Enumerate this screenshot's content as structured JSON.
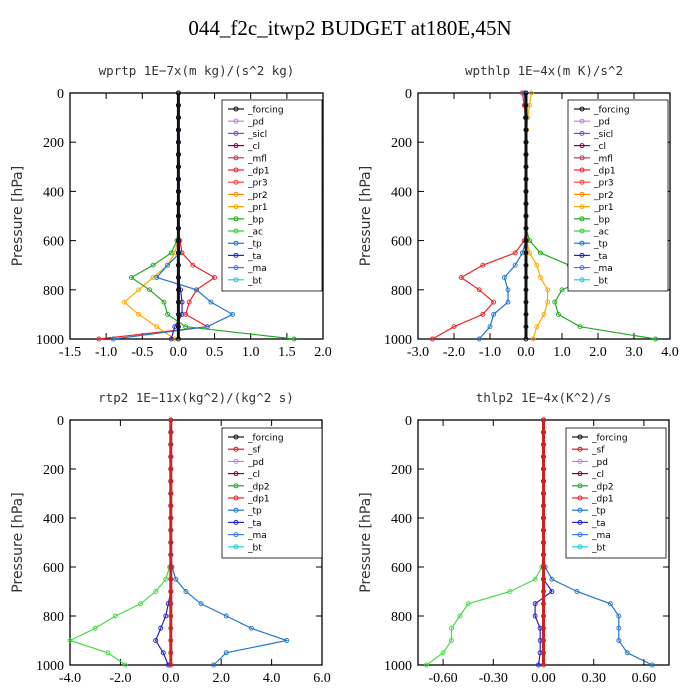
{
  "title": "044_f2c_itwp2  BUDGET at180E,45N",
  "chart_data": [
    {
      "type": "line",
      "title": "wprtp   1E−7x(m kg)/(s^2 kg)",
      "ylabel": "Pressure [hPa]",
      "xlim": [
        -1.5,
        2.0
      ],
      "ylim": [
        1000,
        0
      ],
      "xticks": [
        "-1.5",
        "-1.0",
        "-0.5",
        "0.0",
        "0.5",
        "1.0",
        "1.5",
        "2.0"
      ],
      "yticks": [
        "0",
        "200",
        "400",
        "600",
        "800",
        "1000"
      ],
      "y": [
        0,
        50,
        100,
        150,
        200,
        250,
        300,
        350,
        400,
        450,
        500,
        550,
        600,
        650,
        700,
        750,
        800,
        850,
        900,
        950,
        1000
      ],
      "legend": [
        "_forcing",
        "_pd",
        "_sicl",
        "_cl",
        "_mfl",
        "_dp1",
        "_pr3",
        "_pr2",
        "_pr1",
        "_bp",
        "_ac",
        "_tp",
        "_ta",
        "_ma",
        "_bt"
      ],
      "series": [
        {
          "name": "_dp1",
          "color": "#ee2222",
          "values": [
            0,
            0,
            0,
            0,
            0,
            0,
            0,
            0,
            0,
            0,
            0,
            0,
            0.02,
            0.05,
            0.2,
            0.5,
            0.25,
            0.15,
            0.1,
            0.4,
            -1.1
          ]
        },
        {
          "name": "_pr1",
          "color": "#ffaa00",
          "values": [
            0,
            0,
            0,
            0,
            0,
            0,
            0,
            0,
            0,
            0,
            0,
            0,
            -0.01,
            -0.05,
            -0.15,
            -0.35,
            -0.55,
            -0.75,
            -0.55,
            -0.3,
            -0.05
          ]
        },
        {
          "name": "_bp",
          "color": "#22aa22",
          "values": [
            0,
            0,
            0,
            0,
            0,
            0,
            0,
            0,
            0,
            0,
            0,
            0,
            -0.02,
            -0.1,
            -0.35,
            -0.65,
            -0.4,
            -0.2,
            -0.15,
            0.1,
            1.6
          ]
        },
        {
          "name": "_tp",
          "color": "#2277cc",
          "values": [
            0,
            0,
            0,
            0,
            0,
            0,
            0,
            0,
            0,
            0,
            0,
            0,
            0,
            0.02,
            -0.15,
            -0.3,
            0.25,
            0.45,
            0.75,
            0.4,
            -0.9
          ]
        },
        {
          "name": "_ta",
          "color": "#2222cc",
          "values": [
            0,
            0,
            0,
            0,
            0,
            0,
            0,
            0,
            0,
            0,
            0,
            0,
            0,
            0,
            0,
            0,
            0.03,
            0.05,
            0.05,
            -0.05,
            -0.1
          ]
        },
        {
          "name": "_forcing",
          "color": "#111111",
          "values": [
            0,
            0,
            0,
            0,
            0,
            0,
            0,
            0,
            0,
            0,
            0,
            0,
            0,
            0,
            0,
            0,
            0,
            0,
            0,
            0,
            0
          ]
        }
      ]
    },
    {
      "type": "line",
      "title": "wpthlp   1E−4x(m K)/s^2",
      "ylabel": "Pressure [hPa]",
      "xlim": [
        -3.0,
        4.0
      ],
      "ylim": [
        1000,
        0
      ],
      "xticks": [
        "-3.0",
        "-2.0",
        "-1.0",
        "0.0",
        "1.0",
        "2.0",
        "3.0",
        "4.0"
      ],
      "yticks": [
        "0",
        "200",
        "400",
        "600",
        "800",
        "1000"
      ],
      "y": [
        0,
        50,
        100,
        150,
        200,
        250,
        300,
        350,
        400,
        450,
        500,
        550,
        600,
        650,
        700,
        750,
        800,
        850,
        900,
        950,
        1000
      ],
      "legend": [
        "_forcing",
        "_pd",
        "_sicl",
        "_cl",
        "_mfl",
        "_dp1",
        "_pr3",
        "_pr2",
        "_pr1",
        "_bp",
        "_ac",
        "_tp",
        "_ta",
        "_ma",
        "_bt"
      ],
      "series": [
        {
          "name": "_dp1",
          "color": "#ee2222",
          "values": [
            -0.1,
            -0.05,
            -0.02,
            0,
            0,
            0,
            0,
            0,
            0,
            0,
            0,
            0,
            -0.05,
            -0.3,
            -1.2,
            -1.8,
            -1.3,
            -0.9,
            -1.2,
            -2.0,
            -2.6
          ]
        },
        {
          "name": "_pr1",
          "color": "#ffaa00",
          "values": [
            0.15,
            0.1,
            0.05,
            0.02,
            0,
            0,
            0,
            0,
            0,
            0,
            0,
            0,
            0.02,
            0.1,
            0.3,
            0.4,
            0.6,
            0.6,
            0.5,
            0.3,
            0.2
          ]
        },
        {
          "name": "_bp",
          "color": "#22aa22",
          "values": [
            0,
            0,
            0,
            0,
            0,
            0,
            0,
            0,
            0,
            0,
            0,
            0,
            0.1,
            0.4,
            1.2,
            1.8,
            1.0,
            0.8,
            0.9,
            1.5,
            3.6
          ]
        },
        {
          "name": "_tp",
          "color": "#2277cc",
          "values": [
            -0.05,
            -0.02,
            0,
            0,
            0,
            0,
            0,
            0,
            0,
            0,
            0,
            0,
            0,
            -0.1,
            -0.3,
            -0.6,
            -0.5,
            -0.5,
            -0.9,
            -1.0,
            -1.3
          ]
        },
        {
          "name": "_forcing",
          "color": "#111111",
          "values": [
            0,
            0,
            0,
            0,
            0,
            0,
            0,
            0,
            0,
            0,
            0,
            0,
            0,
            0,
            0,
            0,
            0,
            0,
            0,
            0,
            0
          ]
        }
      ]
    },
    {
      "type": "line",
      "title": "rtp2   1E−11x(kg^2)/(kg^2 s)",
      "ylabel": "Pressure [hPa]",
      "xlim": [
        -4.0,
        6.0
      ],
      "ylim": [
        1000,
        0
      ],
      "xticks": [
        "-4.0",
        "-2.0",
        "0.0",
        "2.0",
        "4.0",
        "6.0"
      ],
      "yticks": [
        "0",
        "200",
        "400",
        "600",
        "800",
        "1000"
      ],
      "y": [
        0,
        50,
        100,
        150,
        200,
        250,
        300,
        350,
        400,
        450,
        500,
        550,
        600,
        650,
        700,
        750,
        800,
        850,
        900,
        950,
        1000
      ],
      "legend": [
        "_forcing",
        "_sf",
        "_pd",
        "_cl",
        "_dp2",
        "_dp1",
        "_tp",
        "_ta",
        "_ma",
        "_bt"
      ],
      "series": [
        {
          "name": "_dp1",
          "color": "#44dd44",
          "values": [
            0,
            0,
            0,
            0,
            0,
            0,
            0,
            0,
            0,
            0,
            0,
            0,
            -0.05,
            -0.2,
            -0.6,
            -1.2,
            -2.2,
            -3.0,
            -4.0,
            -2.5,
            -1.8
          ]
        },
        {
          "name": "_tp",
          "color": "#2277cc",
          "values": [
            0,
            0,
            0,
            0,
            0,
            0,
            0,
            0,
            0,
            0,
            0,
            0,
            0.05,
            0.2,
            0.6,
            1.2,
            2.2,
            3.2,
            4.6,
            2.2,
            1.7
          ]
        },
        {
          "name": "_ta",
          "color": "#2222cc",
          "values": [
            0,
            0,
            0,
            0,
            0,
            0,
            0,
            0,
            0,
            0,
            0,
            0,
            0,
            0,
            0,
            -0.1,
            -0.2,
            -0.4,
            -0.6,
            -0.3,
            -0.1
          ]
        },
        {
          "name": "_forcing",
          "color": "#cc2222",
          "values": [
            0,
            0,
            0,
            0,
            0,
            0,
            0,
            0,
            0,
            0,
            0,
            0,
            0,
            0,
            0,
            0,
            0,
            0,
            0,
            0,
            0
          ]
        }
      ]
    },
    {
      "type": "line",
      "title": "thlp2   1E−4x(K^2)/s",
      "ylabel": "Pressure [hPa]",
      "xlim": [
        -0.75,
        0.75
      ],
      "ylim": [
        1000,
        0
      ],
      "xticks": [
        "-0.60",
        "-0.30",
        "0.00",
        "0.30",
        "0.60"
      ],
      "xtick_values": [
        -0.6,
        -0.3,
        0,
        0.3,
        0.6
      ],
      "yticks": [
        "0",
        "200",
        "400",
        "600",
        "800",
        "1000"
      ],
      "y": [
        0,
        50,
        100,
        150,
        200,
        250,
        300,
        350,
        400,
        450,
        500,
        550,
        600,
        650,
        700,
        750,
        800,
        850,
        900,
        950,
        1000
      ],
      "legend": [
        "_forcing",
        "_sf",
        "_pd",
        "_cl",
        "_dp2",
        "_dp1",
        "_tp",
        "_ta",
        "_ma",
        "_bt"
      ],
      "series": [
        {
          "name": "_dp1",
          "color": "#44dd44",
          "values": [
            0,
            0,
            0,
            0,
            0,
            0,
            0,
            0,
            0,
            0,
            0,
            0,
            -0.01,
            -0.05,
            -0.2,
            -0.45,
            -0.5,
            -0.55,
            -0.55,
            -0.6,
            -0.7
          ]
        },
        {
          "name": "_tp",
          "color": "#2277cc",
          "values": [
            0,
            0,
            0,
            0,
            0,
            0,
            0,
            0,
            0,
            0,
            0,
            0,
            0.01,
            0.05,
            0.2,
            0.4,
            0.45,
            0.45,
            0.45,
            0.5,
            0.65
          ]
        },
        {
          "name": "_ta",
          "color": "#2222cc",
          "values": [
            0,
            0,
            0,
            0,
            0,
            0,
            0,
            0,
            0,
            0,
            0,
            0,
            0,
            0,
            0.05,
            -0.05,
            -0.05,
            -0.02,
            -0.02,
            -0.02,
            -0.03
          ]
        },
        {
          "name": "_forcing",
          "color": "#cc2222",
          "values": [
            0,
            0,
            0,
            0,
            0,
            0,
            0,
            0,
            0,
            0,
            0,
            0,
            0,
            0,
            0,
            0,
            0,
            0,
            0,
            0,
            0
          ]
        }
      ]
    }
  ]
}
